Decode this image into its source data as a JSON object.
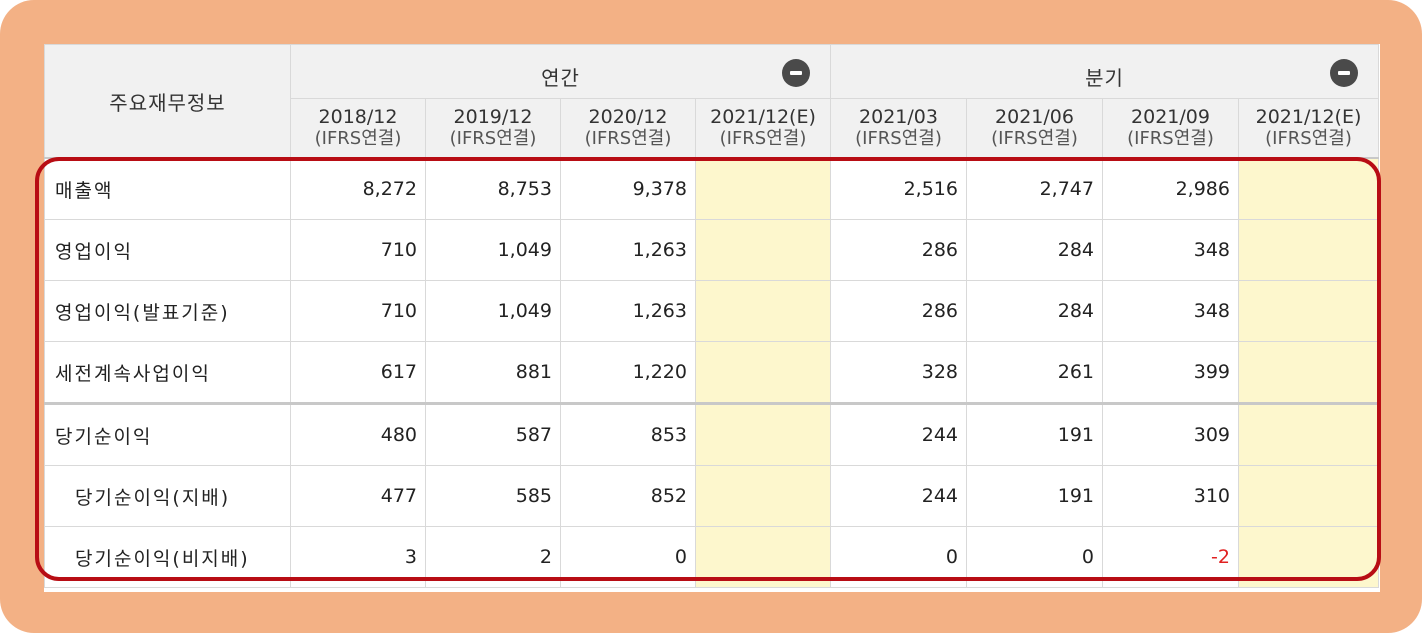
{
  "table": {
    "row_header": "주요재무정보",
    "groups": [
      {
        "label": "연간",
        "toggle_icon": "minus-circle-icon"
      },
      {
        "label": "분기",
        "toggle_icon": "minus-circle-icon"
      }
    ],
    "periods": [
      {
        "date": "2018/12",
        "basis": "(IFRS연결)"
      },
      {
        "date": "2019/12",
        "basis": "(IFRS연결)"
      },
      {
        "date": "2020/12",
        "basis": "(IFRS연결)"
      },
      {
        "date": "2021/12(E)",
        "basis": "(IFRS연결)"
      },
      {
        "date": "2021/03",
        "basis": "(IFRS연결)"
      },
      {
        "date": "2021/06",
        "basis": "(IFRS연결)"
      },
      {
        "date": "2021/09",
        "basis": "(IFRS연결)"
      },
      {
        "date": "2021/12(E)",
        "basis": "(IFRS연결)"
      }
    ],
    "rows": [
      {
        "label": "매출액",
        "values": [
          "8,272",
          "8,753",
          "9,378",
          "",
          "2,516",
          "2,747",
          "2,986",
          ""
        ]
      },
      {
        "label": "영업이익",
        "values": [
          "710",
          "1,049",
          "1,263",
          "",
          "286",
          "284",
          "348",
          ""
        ]
      },
      {
        "label": "영업이익(발표기준)",
        "values": [
          "710",
          "1,049",
          "1,263",
          "",
          "286",
          "284",
          "348",
          ""
        ]
      },
      {
        "label": "세전계속사업이익",
        "values": [
          "617",
          "881",
          "1,220",
          "",
          "328",
          "261",
          "399",
          ""
        ]
      },
      {
        "label": "당기순이익",
        "values": [
          "480",
          "587",
          "853",
          "",
          "244",
          "191",
          "309",
          ""
        ]
      },
      {
        "label": "당기순이익(지배)",
        "values": [
          "477",
          "585",
          "852",
          "",
          "244",
          "191",
          "310",
          ""
        ]
      },
      {
        "label": "당기순이익(비지배)",
        "values": [
          "3",
          "2",
          "0",
          "",
          "0",
          "0",
          "-2",
          ""
        ]
      }
    ]
  },
  "colors": {
    "frame": "#f3b185",
    "highlight_border": "#b80d14",
    "estimate_fill": "#fdf7cd",
    "negative_text": "#e02020",
    "header_fill": "#f1f1f1"
  }
}
